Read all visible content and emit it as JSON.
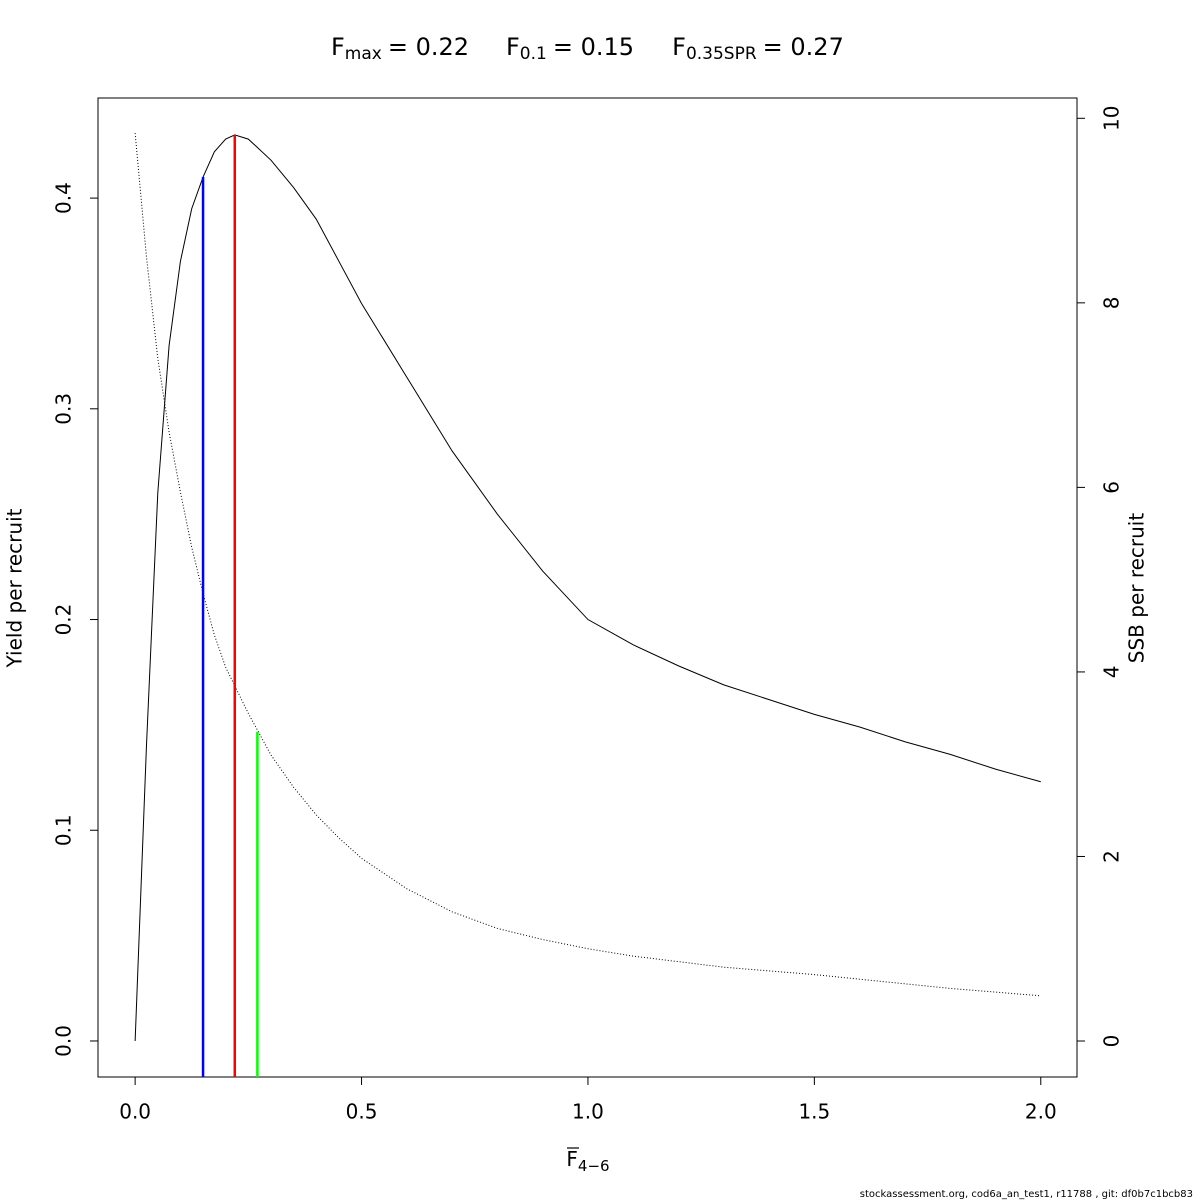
{
  "chart_data": {
    "type": "line",
    "reference_lines": [
      {
        "symbol": "F",
        "subscript": "max",
        "text": "= 0.22",
        "x": 0.22,
        "top": 0.43,
        "color": "#ff0000"
      },
      {
        "symbol": "F",
        "subscript": "0.1",
        "text": "= 0.15",
        "x": 0.15,
        "top": 0.41,
        "color": "#0000ff"
      },
      {
        "symbol": "F",
        "subscript": "0.35SPR",
        "text": "= 0.27",
        "x": 0.27,
        "top": 3.35,
        "axis": "y2",
        "color": "#00ff00"
      }
    ],
    "xlabel": {
      "text": "F",
      "subscript": "4−6"
    },
    "ylabel": "Yield per recruit",
    "y2label": "SSB per recruit",
    "footnote": "stockassessment.org, cod6a_an_test1, r11788 , git: df0b7c1bcb83",
    "x": [
      0,
      0.025,
      0.05,
      0.075,
      0.1,
      0.125,
      0.15,
      0.175,
      0.2,
      0.22,
      0.25,
      0.3,
      0.35,
      0.4,
      0.45,
      0.5,
      0.6,
      0.7,
      0.8,
      0.9,
      1.0,
      1.1,
      1.2,
      1.3,
      1.4,
      1.5,
      1.6,
      1.7,
      1.8,
      1.9,
      2.0
    ],
    "series": [
      {
        "color": "#000000",
        "style": "solid",
        "values": [
          0,
          0.14,
          0.26,
          0.33,
          0.37,
          0.395,
          0.41,
          0.422,
          0.428,
          0.43,
          0.428,
          0.418,
          0.405,
          0.39,
          0.37,
          0.35,
          0.315,
          0.28,
          0.25,
          0.223,
          0.2,
          0.188,
          0.178,
          0.169,
          0.162,
          0.155,
          0.149,
          0.142,
          0.136,
          0.129,
          0.123
        ]
      },
      {
        "color": "#000000",
        "style": "dotted",
        "axis": "y2",
        "values": [
          9.84,
          8.5,
          7.4,
          6.6,
          5.95,
          5.35,
          4.85,
          4.4,
          4.05,
          3.85,
          3.55,
          3.1,
          2.75,
          2.45,
          2.2,
          1.98,
          1.65,
          1.4,
          1.22,
          1.1,
          1.0,
          0.92,
          0.86,
          0.8,
          0.76,
          0.72,
          0.67,
          0.62,
          0.57,
          0.53,
          0.49
        ]
      }
    ],
    "xlim": [
      -0.082,
      2.08
    ],
    "xticks": [
      {
        "value": 0,
        "label": "0.0"
      },
      0.5,
      {
        "value": 1,
        "label": "1.0"
      },
      1.5,
      {
        "value": 2,
        "label": "2.0"
      }
    ],
    "ylim": [
      -0.0171,
      0.4475
    ],
    "yticks": [
      {
        "value": 0,
        "label": "0.0"
      },
      0.1,
      0.2,
      0.3,
      0.4
    ],
    "y2lim": [
      -0.39,
      10.22
    ],
    "y2ticks": [
      0,
      2,
      4,
      6,
      8,
      10
    ],
    "grid": false
  }
}
